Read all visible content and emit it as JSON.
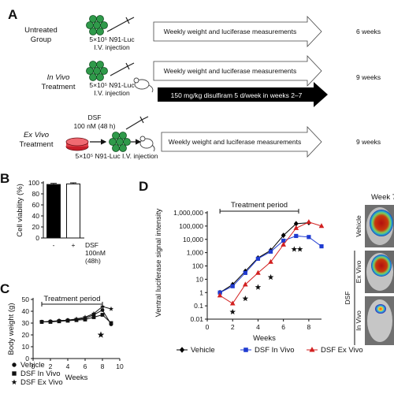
{
  "panel_a": {
    "letter": "A",
    "rows": [
      {
        "group_line1": "Untreated",
        "group_line2": "Group",
        "injection_line1": "5×10⁵ N91-Luc",
        "injection_line2": "I.V. injection",
        "arrow_label": "Weekly weight and luciferase measurements",
        "duration": "6 weeks"
      },
      {
        "group_line1": "In Vivo",
        "group_line2": "Treatment",
        "injection_line1": "5×10⁵ N91-Luc",
        "injection_line2": "I.V. injection",
        "arrow_label": "Weekly weight and luciferase measurements",
        "treatment_label": "150 mg/kg disulfiram 5 d/week in weeks 2–7",
        "duration": "9 weeks"
      },
      {
        "group_line1": "Ex Vivo",
        "group_line2": "Treatment",
        "dsf_line1": "DSF",
        "dsf_line2": "100 nM (48 h)",
        "injection_line1": "5×10⁵ N91-Luc I.V. injection",
        "arrow_label": "Weekly weight and luciferase measurements",
        "duration": "9 weeks"
      }
    ]
  },
  "chart_data": [
    {
      "panel": "B",
      "type": "bar",
      "ylabel": "Cell viability (%)",
      "ylim": [
        0,
        100
      ],
      "yticks": [
        "0",
        "20",
        "40",
        "60",
        "80",
        "100"
      ],
      "categories": [
        "-",
        "+"
      ],
      "values": [
        97,
        98
      ],
      "errors": [
        2,
        2
      ],
      "colors": [
        "#000000",
        "#ffffff"
      ],
      "xlabel_lines": [
        "DSF",
        "100nM",
        "(48h)"
      ]
    },
    {
      "panel": "C",
      "type": "line",
      "xlabel": "Weeks",
      "ylabel": "Body weight (g)",
      "xlim": [
        0,
        10
      ],
      "ylim": [
        0,
        50
      ],
      "xticks": [
        "0",
        "2",
        "4",
        "6",
        "8",
        "10"
      ],
      "yticks": [
        "0",
        "10",
        "20",
        "30",
        "40",
        "50"
      ],
      "treatment_label": "Treatment period",
      "treatment_range": [
        1,
        8
      ],
      "star_weeks": [
        8
      ],
      "legend": [
        "Vehicle",
        "DSF In Vivo",
        "DSF Ex Vivo"
      ],
      "series": [
        {
          "name": "Vehicle",
          "marker": "circle",
          "x": [
            1,
            2,
            3,
            4,
            5,
            6,
            7,
            8,
            9
          ],
          "y": [
            31,
            31.5,
            32,
            32.5,
            33,
            34,
            37,
            41,
            29
          ]
        },
        {
          "name": "DSF In Vivo",
          "marker": "square",
          "x": [
            1,
            2,
            3,
            4,
            5,
            6,
            7,
            8,
            9
          ],
          "y": [
            31,
            31,
            31.5,
            32,
            32.5,
            33,
            35,
            37,
            30
          ]
        },
        {
          "name": "DSF Ex Vivo",
          "marker": "star",
          "x": [
            1,
            2,
            3,
            4,
            5,
            6,
            7,
            8,
            9
          ],
          "y": [
            31,
            31,
            32,
            32.5,
            33.5,
            35,
            38,
            44,
            42
          ]
        }
      ]
    },
    {
      "panel": "D",
      "type": "line",
      "xlabel": "Weeks",
      "ylabel": "Ventral luciferase signal intensity",
      "scale": "log",
      "xlim": [
        0,
        9
      ],
      "ylim": [
        0.01,
        1000000
      ],
      "xticks": [
        "0",
        "2",
        "4",
        "6",
        "8"
      ],
      "yticks": [
        "0.01",
        "0.1",
        "1",
        "10",
        "100",
        "1,000",
        "10,000",
        "100,000",
        "1,000,000"
      ],
      "treatment_label": "Treatment period",
      "treatment_range": [
        1,
        7.2
      ],
      "stars": [
        {
          "x": 2,
          "y": 0.035
        },
        {
          "x": 3,
          "y": 0.35
        },
        {
          "x": 4,
          "y": 2.5
        },
        {
          "x": 5,
          "y": 14
        },
        {
          "x": 6.85,
          "y": 1800
        },
        {
          "x": 7.3,
          "y": 1800
        }
      ],
      "legend": [
        "Vehicle",
        "DSF In Vivo",
        "DSF Ex Vivo"
      ],
      "series": [
        {
          "name": "Vehicle",
          "color": "#000000",
          "marker": "diamond",
          "x": [
            1,
            2,
            3,
            4,
            5,
            6,
            7,
            8
          ],
          "y": [
            1,
            4,
            40,
            400,
            1500,
            20000,
            150000,
            180000
          ]
        },
        {
          "name": "DSF In Vivo",
          "color": "#1f3bd1",
          "marker": "square",
          "x": [
            1,
            2,
            3,
            4,
            5,
            6,
            7,
            8,
            9
          ],
          "y": [
            1,
            3,
            30,
            350,
            1200,
            8000,
            18000,
            15000,
            3000
          ]
        },
        {
          "name": "DSF Ex Vivo",
          "color": "#d22020",
          "marker": "triangle",
          "x": [
            1,
            2,
            3,
            4,
            5,
            6,
            7,
            8,
            9
          ],
          "y": [
            0.6,
            0.15,
            4,
            30,
            200,
            4000,
            70000,
            200000,
            100000
          ]
        }
      ]
    }
  ],
  "images": {
    "header": "Week 7",
    "labels": [
      "Vehicle",
      "Ex Vivo",
      "In Vivo"
    ],
    "group_label": "DSF"
  }
}
